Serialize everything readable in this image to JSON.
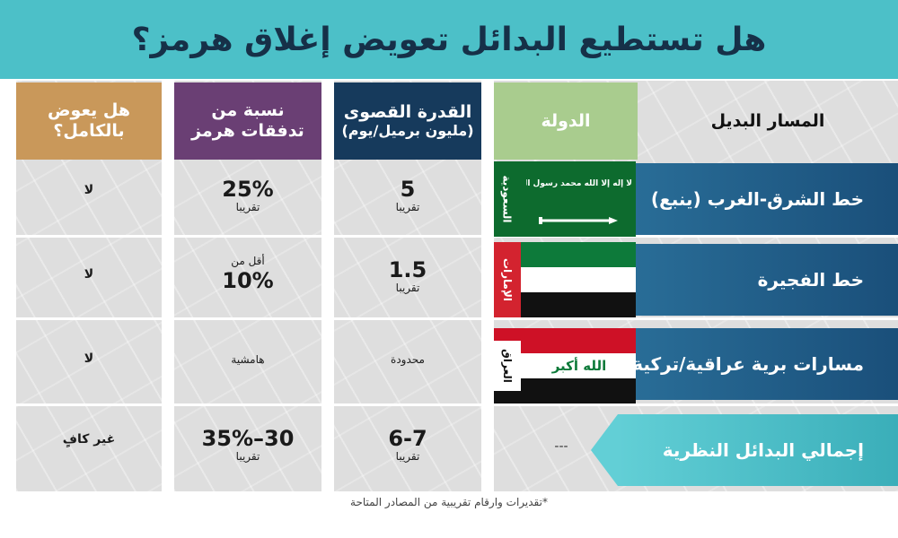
{
  "title": "هل تستطيع البدائل تعويض إغلاق هرمز؟",
  "colors": {
    "title_bg": "#4cc0c8",
    "col_full_comp": "#c9985a",
    "col_share": "#6a3f74",
    "col_capacity": "#163a5c",
    "col_country": "#a9cc8e",
    "col_route": "#dedede",
    "route_blue": "#1d5a86",
    "route_teal": "#4fc3cc"
  },
  "headers": {
    "full_comp": {
      "line1": "هل يعوض",
      "line2": "بالكامل؟"
    },
    "share": {
      "line1": "نسبة من",
      "line2": "تدفقات هرمز"
    },
    "capacity": {
      "line1": "القدرة القصوى",
      "line2": "(مليون برميل/يوم)"
    },
    "country": "الدولة",
    "route": "المسار البديل"
  },
  "rows": [
    {
      "route": "خط الشرق-الغرب (ينبع)",
      "country": "السعودية",
      "flag_text": "لا إله إلا الله محمد رسول الله",
      "capacity": "5",
      "capacity_note": "تقريبا",
      "share_pre": "",
      "share": "25%",
      "share_note": "تقريبا",
      "full": "لا"
    },
    {
      "route": "خط الفجيرة",
      "country": "الإمارات",
      "capacity": "1.5",
      "capacity_note": "تقريبا",
      "share_pre": "أقل من",
      "share": "10%",
      "share_note": "",
      "full": "لا"
    },
    {
      "route": "مسارات برية عراقية/تركية",
      "country": "العراق",
      "flag_text": "الله أكبر",
      "capacity": "محدودة",
      "capacity_note": "",
      "share_pre": "",
      "share": "هامشية",
      "share_note": "",
      "full": "لا"
    },
    {
      "route": "إجمالي البدائل النظرية",
      "country": "---",
      "capacity": "6-7",
      "capacity_note": "تقريبا",
      "share_pre": "",
      "share": "30–35%",
      "share_note": "تقريبا",
      "full": "غير كافٍ"
    }
  ],
  "footnote": "*تقديرات وارقام تقريبية من المصادر المتاحة"
}
